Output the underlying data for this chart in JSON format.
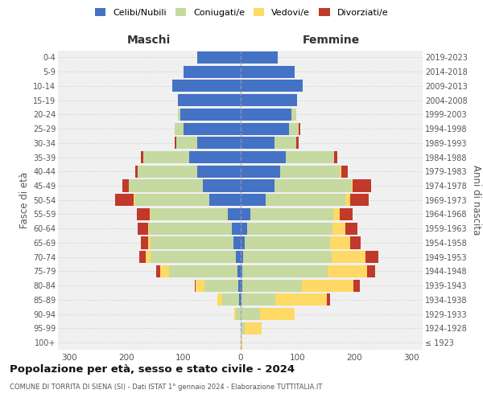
{
  "age_groups": [
    "100+",
    "95-99",
    "90-94",
    "85-89",
    "80-84",
    "75-79",
    "70-74",
    "65-69",
    "60-64",
    "55-59",
    "50-54",
    "45-49",
    "40-44",
    "35-39",
    "30-34",
    "25-29",
    "20-24",
    "15-19",
    "10-14",
    "5-9",
    "0-4"
  ],
  "birth_years": [
    "≤ 1923",
    "1924-1928",
    "1929-1933",
    "1934-1938",
    "1939-1943",
    "1944-1948",
    "1949-1953",
    "1954-1958",
    "1959-1963",
    "1964-1968",
    "1969-1973",
    "1974-1978",
    "1979-1983",
    "1984-1988",
    "1989-1993",
    "1994-1998",
    "1999-2003",
    "2004-2008",
    "2009-2013",
    "2014-2018",
    "2019-2023"
  ],
  "m_cel": [
    0,
    0,
    0,
    2,
    3,
    5,
    8,
    12,
    15,
    22,
    55,
    65,
    75,
    90,
    75,
    100,
    105,
    110,
    120,
    100,
    75
  ],
  "m_con": [
    0,
    0,
    8,
    30,
    60,
    120,
    150,
    145,
    145,
    135,
    130,
    130,
    105,
    80,
    38,
    15,
    5,
    0,
    0,
    0,
    0
  ],
  "m_ved": [
    0,
    0,
    2,
    8,
    15,
    15,
    8,
    5,
    2,
    2,
    2,
    0,
    0,
    0,
    0,
    0,
    0,
    0,
    0,
    0,
    0
  ],
  "m_div": [
    0,
    0,
    0,
    0,
    2,
    8,
    12,
    12,
    18,
    22,
    32,
    12,
    5,
    5,
    2,
    0,
    0,
    0,
    0,
    0,
    0
  ],
  "f_nub": [
    0,
    0,
    0,
    2,
    3,
    3,
    5,
    8,
    12,
    18,
    45,
    60,
    70,
    80,
    60,
    85,
    90,
    100,
    110,
    95,
    65
  ],
  "f_con": [
    0,
    8,
    35,
    60,
    105,
    150,
    155,
    150,
    150,
    145,
    140,
    135,
    105,
    85,
    38,
    18,
    8,
    0,
    0,
    0,
    0
  ],
  "f_ved": [
    3,
    30,
    60,
    90,
    90,
    70,
    60,
    35,
    22,
    12,
    8,
    2,
    2,
    0,
    0,
    0,
    0,
    0,
    0,
    0,
    0
  ],
  "f_div": [
    0,
    0,
    0,
    5,
    12,
    14,
    22,
    18,
    22,
    22,
    32,
    32,
    12,
    5,
    5,
    2,
    0,
    0,
    0,
    0,
    0
  ],
  "colors": {
    "celibi": "#4472c4",
    "coniugati": "#c5d9a0",
    "vedovi": "#ffd966",
    "divorziati": "#c0392b"
  },
  "xlim": 320,
  "title": "Popolazione per età, sesso e stato civile - 2024",
  "subtitle": "COMUNE DI TORRITA DI SIENA (SI) - Dati ISTAT 1° gennaio 2024 - Elaborazione TUTTITALIA.IT",
  "ylabel_left": "Fasce di età",
  "ylabel_right": "Anni di nascita",
  "bg_color": "#ffffff",
  "plot_bg": "#f0f0f0",
  "grid_color": "#cccccc"
}
